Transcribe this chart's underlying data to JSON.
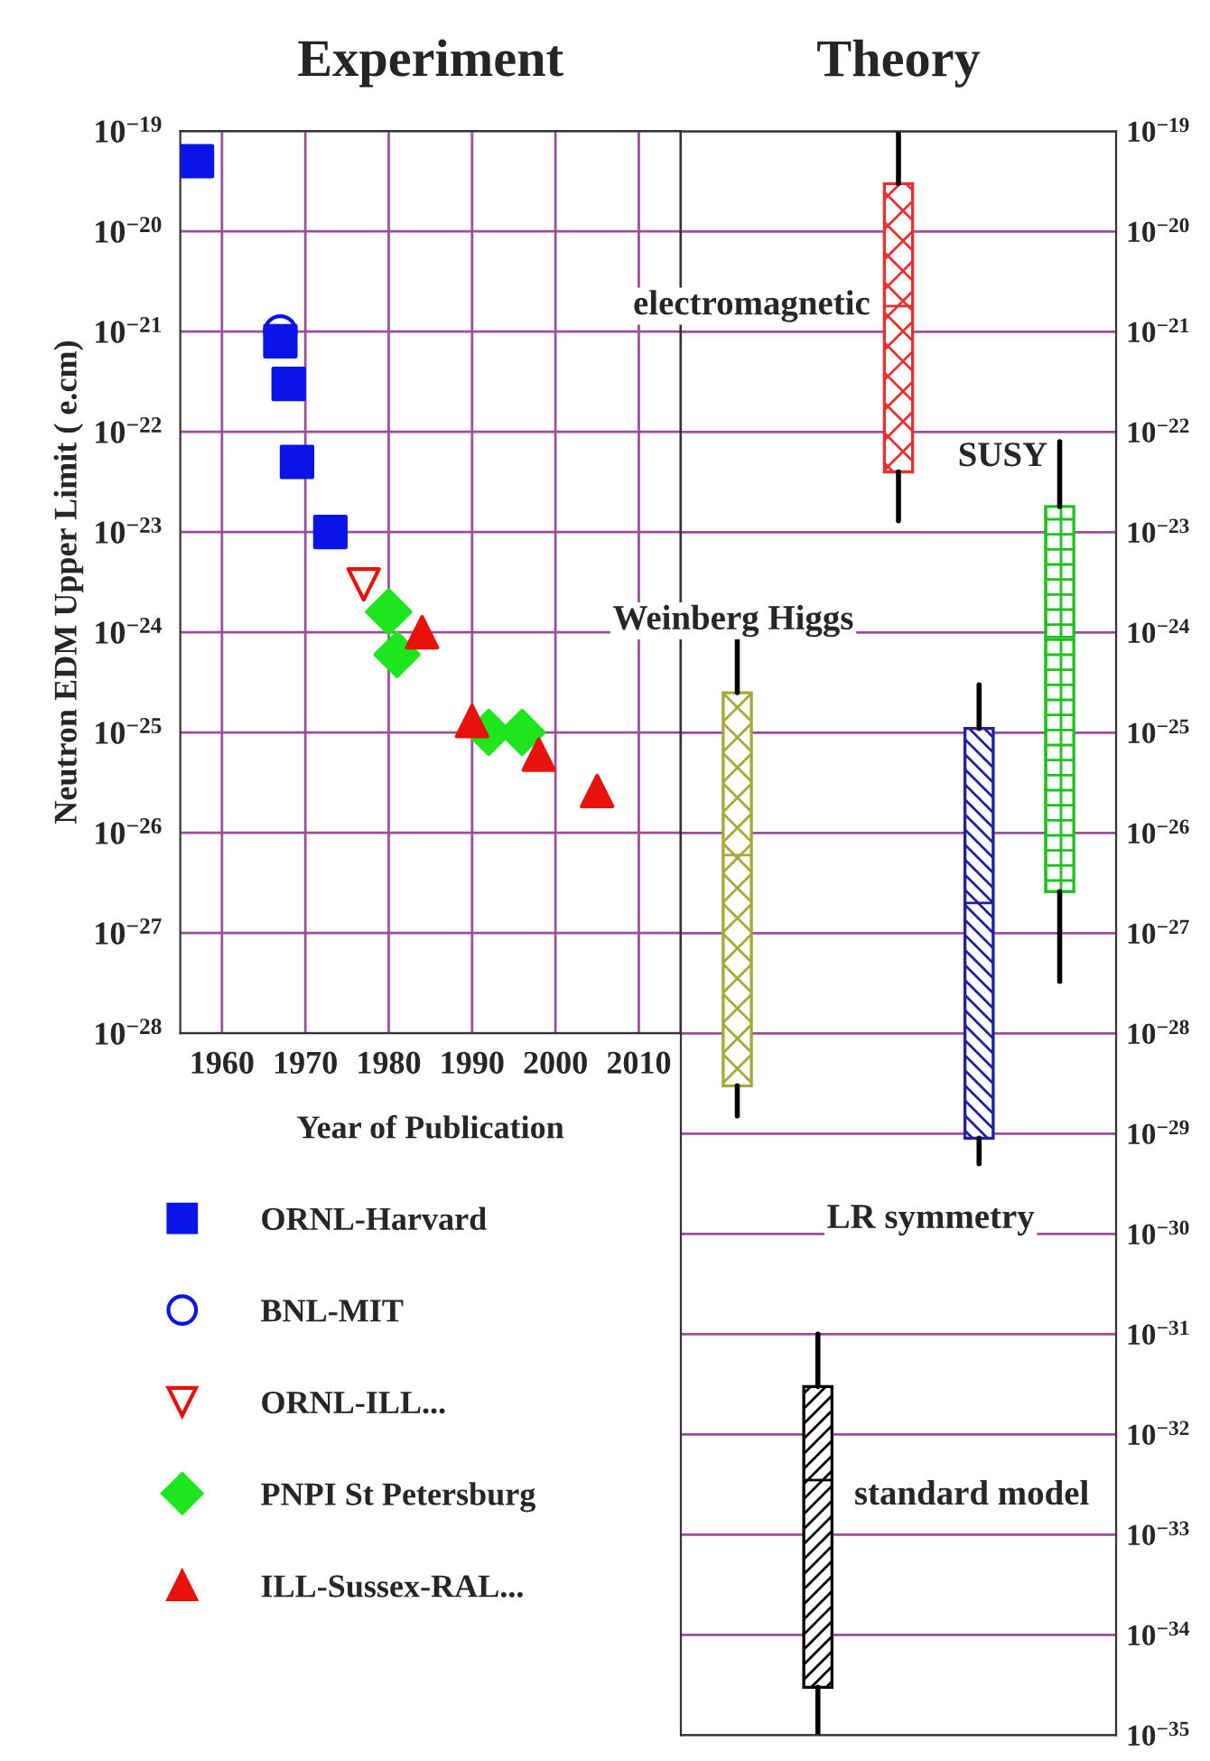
{
  "chart_data": [
    {
      "type": "scatter",
      "title": "Experiment",
      "xlabel": "Year of Publication",
      "ylabel": "Neutron EDM Upper Limit ( e.cm)",
      "log": "y",
      "grid": true,
      "legend": "bottom",
      "xlim": [
        1955,
        2015
      ],
      "xticks": [
        1960,
        1970,
        1980,
        1990,
        2000,
        2010
      ],
      "ylim": [
        1e-28,
        1e-19
      ],
      "yticks": [
        {
          "value": 1e-19,
          "label": "10$^{−19}$"
        },
        {
          "value": 1e-20,
          "label": "10$^{−20}$"
        },
        {
          "value": 1e-21,
          "label": "10$^{−21}$"
        },
        {
          "value": 1e-22,
          "label": "10$^{−22}$"
        },
        {
          "value": 1e-23,
          "label": "10$^{−23}$"
        },
        {
          "value": 1e-24,
          "label": "10$^{−24}$"
        },
        {
          "value": 1e-25,
          "label": "10$^{−25}$"
        },
        {
          "value": 1e-26,
          "label": "10$^{−26}$"
        },
        {
          "value": 1e-27,
          "label": "10$^{−27}$"
        },
        {
          "value": 1e-28,
          "label": "10$^{−28}$"
        }
      ],
      "series": [
        {
          "name": "ORNL-Harvard",
          "color": "#0a14e6",
          "marker": "square",
          "x": [
            1957,
            1967,
            1968,
            1969,
            1973
          ],
          "values": [
            5e-20,
            8e-22,
            3e-22,
            5e-23,
            1e-23
          ]
        },
        {
          "name": "BNL-MIT",
          "color": "#0a14e6",
          "marker": "circle_open",
          "x": [
            1967
          ],
          "values": [
            1e-21
          ]
        },
        {
          "name": "ORNL-ILL...",
          "color": "#e8120c",
          "marker": "triangle_down_open",
          "x": [
            1977
          ],
          "values": [
            3e-24
          ]
        },
        {
          "name": "PNPI St Petersburg",
          "color": "#1ee61e",
          "marker": "diamond",
          "x": [
            1980,
            1981,
            1992,
            1996
          ],
          "values": [
            1.6e-24,
            6e-25,
            1e-25,
            1e-25
          ]
        },
        {
          "name": "ILL-Sussex-RAL...",
          "color": "#e8120c",
          "marker": "triangle",
          "x": [
            1984,
            1990,
            1998,
            2005
          ],
          "values": [
            1e-24,
            1.3e-25,
            6e-26,
            2.6e-26
          ]
        }
      ]
    },
    {
      "type": "box",
      "title": "Theory",
      "log": "y",
      "grid": "y",
      "categories": [
        null,
        null,
        null,
        null,
        null
      ],
      "annotations": [
        "Weinberg Higgs",
        "standard model",
        "electromagnetic",
        "LR symmetry",
        "SUSY"
      ],
      "colors": [
        "#a8a838",
        "#000000",
        "#e83030",
        "#2020a0",
        "#20c020"
      ],
      "ylim": [
        1e-35,
        1e-19
      ],
      "yticks": [
        {
          "value": 1e-19,
          "label": "10$^{−19}$"
        },
        {
          "value": 1e-20,
          "label": "10$^{−20}$"
        },
        {
          "value": 1e-21,
          "label": "10$^{−21}$"
        },
        {
          "value": 1e-22,
          "label": "10$^{−22}$"
        },
        {
          "value": 1e-23,
          "label": "10$^{−23}$"
        },
        {
          "value": 1e-24,
          "label": "10$^{−24}$"
        },
        {
          "value": 1e-25,
          "label": "10$^{−25}$"
        },
        {
          "value": 1e-26,
          "label": "10$^{−26}$"
        },
        {
          "value": 1e-27,
          "label": "10$^{−27}$"
        },
        {
          "value": 1e-28,
          "label": "10$^{−28}$"
        },
        {
          "value": 1e-29,
          "label": "10$^{−29}$"
        },
        {
          "value": 1e-30,
          "label": "10$^{−30}$"
        },
        {
          "value": 1e-31,
          "label": "10$^{−31}$"
        },
        {
          "value": 1e-32,
          "label": "10$^{−32}$"
        },
        {
          "value": 1e-33,
          "label": "10$^{−33}$"
        },
        {
          "value": 1e-34,
          "label": "10$^{−34}$"
        },
        {
          "value": 1e-35,
          "label": "10$^{−35}$"
        }
      ],
      "boxes": [
        {
          "low": 1.5e-29,
          "q1": 3e-29,
          "median": 6e-27,
          "q3": 2.5e-25,
          "high": 9e-25
        },
        {
          "low": 1e-35,
          "q1": 3e-35,
          "median": 3.5e-33,
          "q3": 3e-32,
          "high": 1e-31
        },
        {
          "low": 1.3e-23,
          "q1": 4e-23,
          "median": 1.8e-21,
          "q3": 3e-20,
          "high": 1e-19
        },
        {
          "low": 5e-30,
          "q1": 9e-30,
          "median": 2e-27,
          "q3": 1.1e-25,
          "high": 3e-25
        },
        {
          "low": 3.3e-28,
          "q1": 2.6e-27,
          "median": 9e-25,
          "q3": 1.8e-23,
          "high": 8e-23
        }
      ]
    }
  ]
}
